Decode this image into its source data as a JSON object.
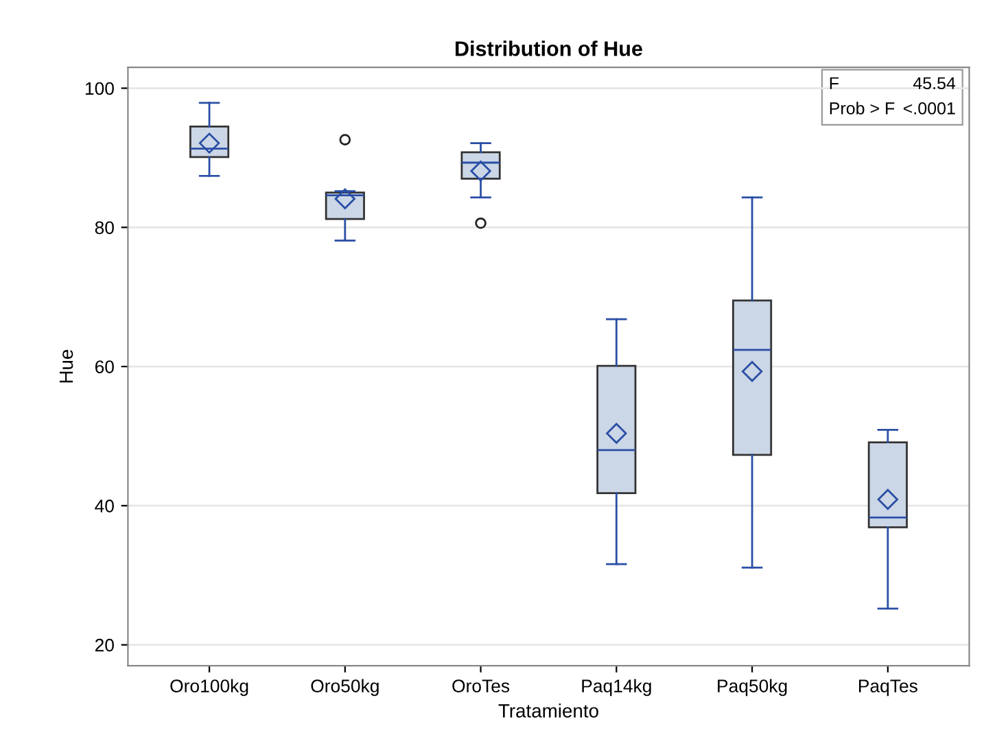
{
  "chart_data": {
    "type": "box",
    "title": "Distribution of Hue",
    "xlabel": "Tratamiento",
    "ylabel": "Hue",
    "categories": [
      "Oro100kg",
      "Oro50kg",
      "OroTes",
      "Paq14kg",
      "Paq50kg",
      "PaqTes"
    ],
    "boxes": [
      {
        "low": 87.4,
        "q1": 90.1,
        "median": 91.3,
        "q3": 94.5,
        "high": 97.9,
        "mean": 92.1
      },
      {
        "low": 78.1,
        "q1": 81.2,
        "median": 84.6,
        "q3": 85.0,
        "high": 85.2,
        "mean": 84.1,
        "outliers": [
          92.6
        ]
      },
      {
        "low": 84.3,
        "q1": 87.0,
        "median": 89.3,
        "q3": 90.8,
        "high": 92.1,
        "mean": 88.1,
        "outliers": [
          80.6
        ]
      },
      {
        "low": 31.6,
        "q1": 41.8,
        "median": 48.0,
        "q3": 60.1,
        "high": 66.8,
        "mean": 50.4
      },
      {
        "low": 31.1,
        "q1": 47.3,
        "median": 62.4,
        "q3": 69.5,
        "high": 84.3,
        "mean": 59.3
      },
      {
        "low": 25.2,
        "q1": 36.9,
        "median": 38.3,
        "q3": 49.1,
        "high": 50.9,
        "mean": 40.9
      }
    ],
    "color": "#cbd6e6",
    "ylim": [
      17,
      103
    ],
    "yticks": [
      20,
      40,
      60,
      80,
      100
    ],
    "grid": "y",
    "annotations": [
      "F 45.54",
      "Prob > F <.0001"
    ]
  }
}
